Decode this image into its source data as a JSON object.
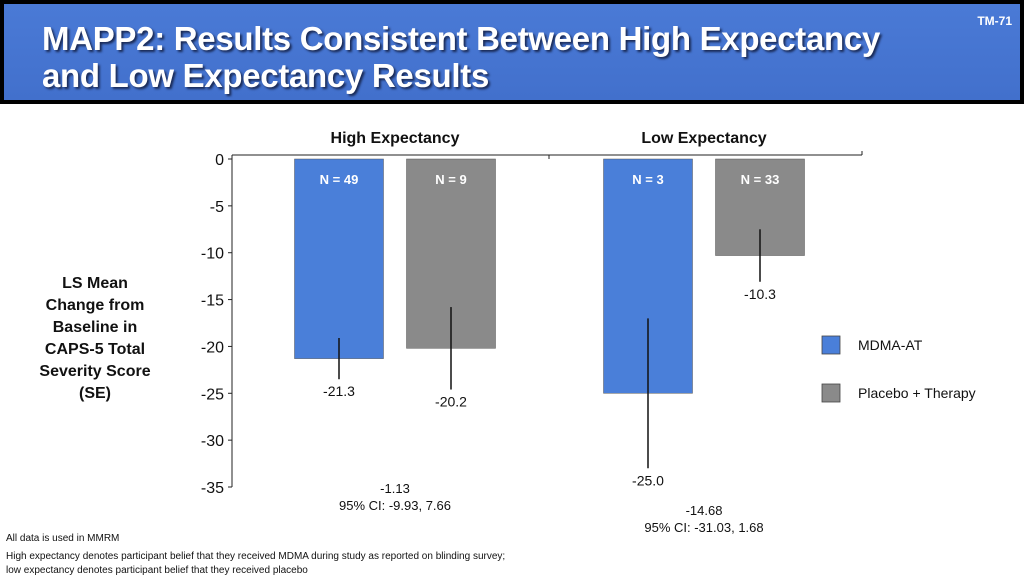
{
  "header": {
    "title_line1": "MAPP2: Results Consistent Between High Expectancy",
    "title_line2": "and Low Expectancy Results",
    "slide_id": "TM-71"
  },
  "footnotes": [
    "All data is used in MMRM",
    "High expectancy denotes participant belief that they received MDMA during study as reported on blinding survey;",
    "low expectancy denotes participant belief that they received placebo"
  ],
  "chart_data": {
    "type": "bar",
    "title": "",
    "ylabel": "LS Mean Change from Baseline in CAPS-5 Total Severity Score (SE)",
    "ylabel_lines": [
      "LS Mean",
      "Change from",
      "Baseline in",
      "CAPS-5 Total",
      "Severity Score",
      "(SE)"
    ],
    "ylim": [
      -35,
      0
    ],
    "yticks": [
      0,
      -5,
      -10,
      -15,
      -20,
      -25,
      -30,
      -35
    ],
    "grid": false,
    "legend_position": "right",
    "categories": [
      "High Expectancy",
      "Low Expectancy"
    ],
    "series": [
      {
        "name": "MDMA-AT",
        "color": "#4a7fd9",
        "values": [
          -21.3,
          -25.0
        ],
        "value_labels": [
          "-21.3",
          "-25.0"
        ],
        "n_labels": [
          "N = 49",
          "N = 3"
        ],
        "se": [
          2.2,
          8.0
        ]
      },
      {
        "name": "Placebo + Therapy",
        "color": "#8a8a8a",
        "values": [
          -20.2,
          -10.3
        ],
        "value_labels": [
          "-20.2",
          "-10.3"
        ],
        "n_labels": [
          "N = 9",
          "N = 33"
        ],
        "se": [
          4.4,
          2.8
        ]
      }
    ],
    "differences": [
      {
        "value": "-1.13",
        "ci": "95% CI: -9.93, 7.66"
      },
      {
        "value": "-14.68",
        "ci": "95% CI: -31.03, 1.68"
      }
    ]
  }
}
